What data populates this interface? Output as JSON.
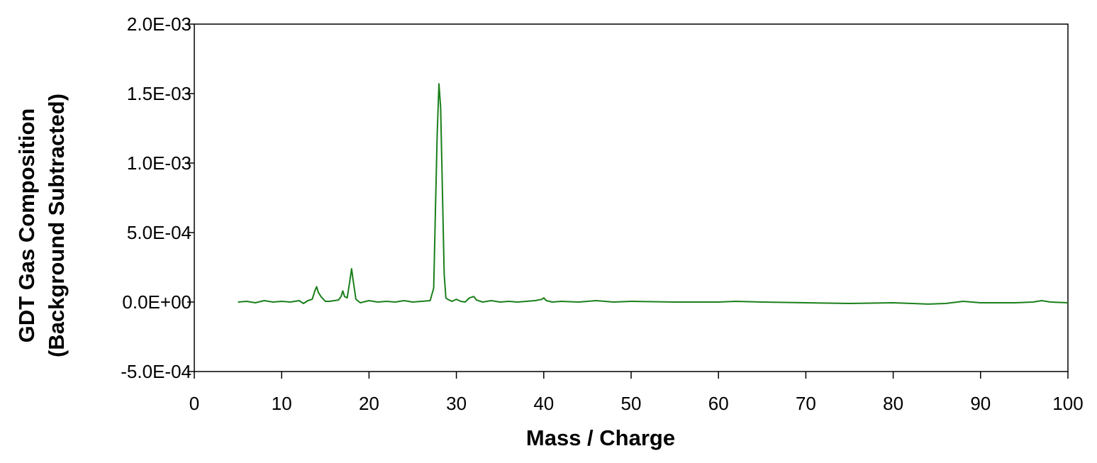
{
  "chart_data": {
    "type": "line",
    "title": "",
    "xlabel": "Mass / Charge",
    "ylabel": [
      "GDT Gas Composition",
      "(Background Subtracted)"
    ],
    "xlim": [
      0,
      100
    ],
    "ylim": [
      -0.0005,
      0.002
    ],
    "x_ticks": [
      0,
      10,
      20,
      30,
      40,
      50,
      60,
      70,
      80,
      90,
      100
    ],
    "x_tick_labels": [
      "0",
      "10",
      "20",
      "30",
      "40",
      "50",
      "60",
      "70",
      "80",
      "90",
      "100"
    ],
    "y_ticks": [
      -0.0005,
      0,
      0.0005,
      0.001,
      0.0015,
      0.002
    ],
    "y_tick_labels": [
      "-5.0E-04",
      "0.0E+00",
      "5.0E-04",
      "1.0E-03",
      "1.5E-03",
      "2.0E-03"
    ],
    "grid": false,
    "legend": "none",
    "series": [
      {
        "color": "#1a7f1a",
        "x": [
          5,
          6,
          7,
          8,
          9,
          10,
          11,
          12,
          12.5,
          13,
          13.5,
          13.8,
          14,
          14.2,
          14.5,
          15,
          15.5,
          16,
          16.5,
          16.8,
          17,
          17.2,
          17.5,
          17.8,
          18,
          18.2,
          18.5,
          19,
          20,
          21,
          22,
          23,
          24,
          25,
          26,
          27,
          27.4,
          27.6,
          27.8,
          28,
          28.2,
          28.4,
          28.6,
          28.8,
          29,
          29.5,
          30,
          30.5,
          31,
          31.5,
          32,
          32.3,
          33,
          34,
          35,
          36,
          37,
          38,
          39,
          39.8,
          40,
          40.3,
          41,
          42,
          44,
          46,
          48,
          50,
          55,
          60,
          62,
          65,
          70,
          75,
          80,
          84,
          86,
          88,
          90,
          92,
          94,
          96,
          97,
          98,
          100
        ],
        "values": [
          0,
          5e-06,
          -5e-06,
          1e-05,
          0,
          5e-06,
          0,
          1e-05,
          -1e-05,
          1e-05,
          2e-05,
          8e-05,
          0.00011,
          7e-05,
          4e-05,
          5e-06,
          5e-06,
          1e-05,
          1.5e-05,
          4e-05,
          8e-05,
          4e-05,
          3e-05,
          0.00015,
          0.00024,
          0.00015,
          2e-05,
          -5e-06,
          1e-05,
          0,
          5e-06,
          0,
          1e-05,
          0,
          5e-06,
          1e-05,
          0.0001,
          0.00065,
          0.0012,
          0.00157,
          0.0014,
          0.0008,
          0.0002,
          3e-05,
          2e-05,
          5e-06,
          2e-05,
          5e-06,
          0,
          3e-05,
          4e-05,
          1.5e-05,
          0,
          1e-05,
          0,
          5e-06,
          0,
          5e-06,
          1e-05,
          2e-05,
          3e-05,
          1e-05,
          0,
          5e-06,
          0,
          1e-05,
          0,
          5e-06,
          0,
          0,
          5e-06,
          0,
          -5e-06,
          -1e-05,
          -5e-06,
          -1.5e-05,
          -1e-05,
          5e-06,
          -5e-06,
          -5e-06,
          -5e-06,
          0,
          1e-05,
          0,
          -5e-06
        ]
      }
    ]
  }
}
